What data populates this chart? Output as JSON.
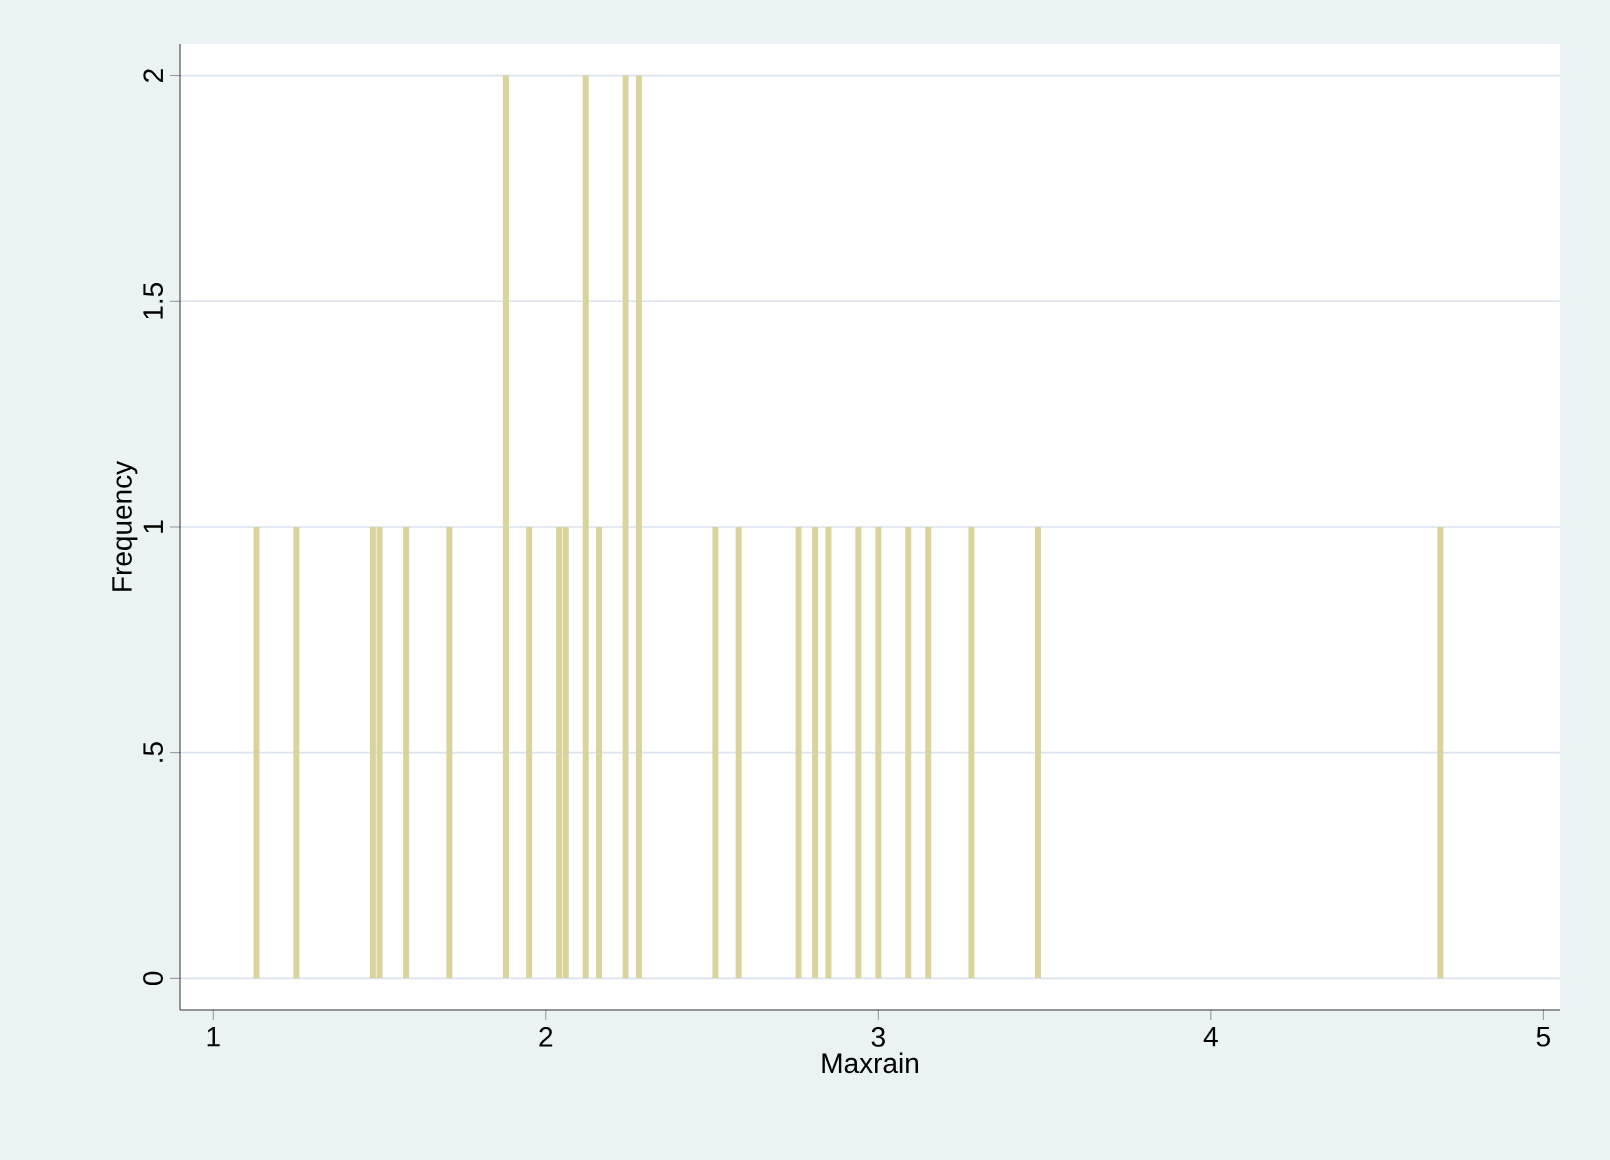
{
  "chart_data": {
    "type": "bar",
    "xlabel": "Maxrain",
    "ylabel": "Frequency",
    "x": [
      1.13,
      1.25,
      1.48,
      1.5,
      1.58,
      1.71,
      1.88,
      1.95,
      2.04,
      2.06,
      2.12,
      2.16,
      2.24,
      2.28,
      2.51,
      2.58,
      2.76,
      2.81,
      2.85,
      2.94,
      3.0,
      3.09,
      3.15,
      3.28,
      3.48,
      4.69
    ],
    "values": [
      1,
      1,
      1,
      1,
      1,
      1,
      2,
      1,
      1,
      1,
      2,
      1,
      2,
      2,
      1,
      1,
      1,
      1,
      1,
      1,
      1,
      1,
      1,
      1,
      1,
      1
    ],
    "color": "#d8d49c",
    "xlim": [
      0.9,
      5.05
    ],
    "ylim": [
      -0.07,
      2.07
    ],
    "xticks": [
      1,
      2,
      3,
      4,
      5
    ],
    "yticks": [
      0,
      {
        "value": 0.5,
        "label": ".5"
      },
      1,
      1.5,
      2
    ],
    "grid": "y"
  }
}
